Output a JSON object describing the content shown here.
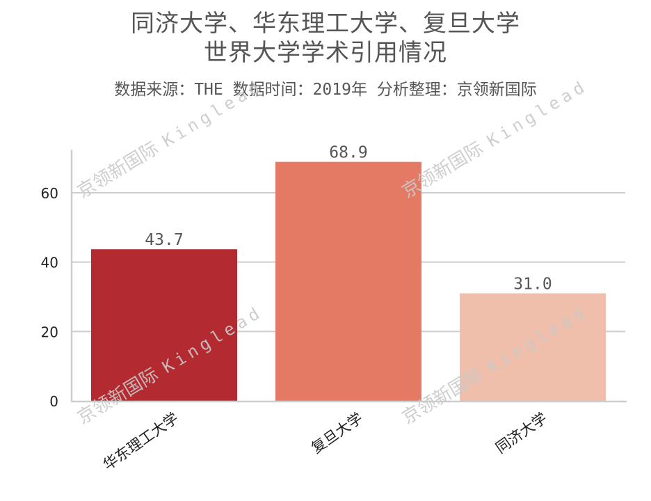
{
  "title": {
    "line1": "同济大学、华东理工大学、复旦大学",
    "line2": "世界大学学术引用情况"
  },
  "subtitle": "数据来源：THE 数据时间：2019年 分析整理：京领新国际",
  "watermark": {
    "cn": "京领新国际",
    "en": "Kinglead"
  },
  "colors": {
    "bar1": "#b32a31",
    "bar2": "#e57a64",
    "bar3": "#f0bfab",
    "grid": "#cccccc",
    "axis": "#cccccc",
    "title": "#555555",
    "label": "#555555",
    "tick": "#222222",
    "watermark": "#c9c9c9"
  },
  "chart_data": {
    "type": "bar",
    "title": "同济大学、华东理工大学、复旦大学 世界大学学术引用情况",
    "subtitle": "数据来源：THE 数据时间：2019年 分析整理：京领新国际",
    "categories": [
      "华东理工大学",
      "复旦大学",
      "同济大学"
    ],
    "values": [
      43.7,
      68.9,
      31.0
    ],
    "value_labels": [
      "43.7",
      "68.9",
      "31.0"
    ],
    "xlabel": "",
    "ylabel": "",
    "ylim": [
      0,
      72
    ],
    "yticks": [
      0,
      20,
      40,
      60
    ],
    "grid": "y",
    "legend": null,
    "bar_colors": [
      "#b32a31",
      "#e57a64",
      "#f0bfab"
    ],
    "x_tick_rotation": 35
  }
}
